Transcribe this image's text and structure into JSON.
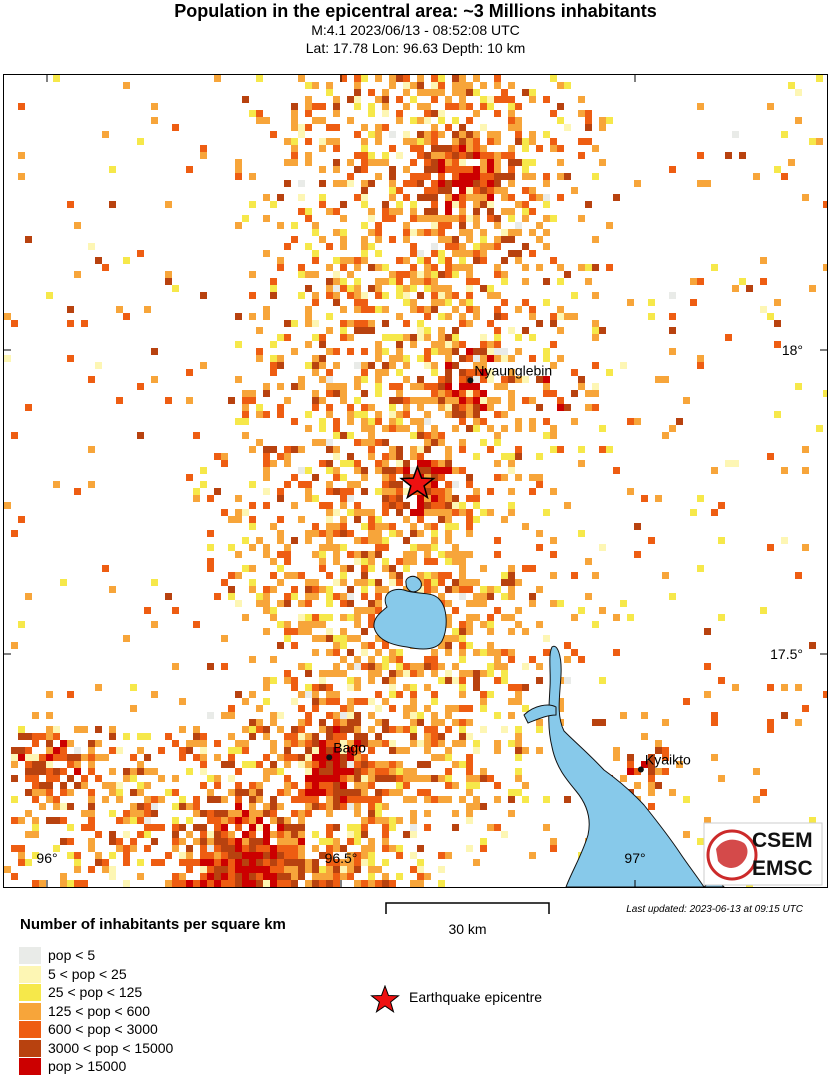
{
  "header": {
    "title": "Population in the epicentral area: ~3 Millions inhabitants",
    "line2": "M:4.1 2023/06/13 - 08:52:08 UTC",
    "line3": "Lat: 17.78 Lon: 96.63 Depth: 10 km"
  },
  "map": {
    "lon_ticks": [
      {
        "label": "96°",
        "value": 96.0
      },
      {
        "label": "96.5°",
        "value": 96.5
      },
      {
        "label": "97°",
        "value": 97.0
      }
    ],
    "lat_ticks": [
      {
        "label": "18°",
        "value": 18.0
      },
      {
        "label": "17.5°",
        "value": 17.5
      }
    ],
    "cities": [
      {
        "name": "Nyaunglebin",
        "lon": 96.72,
        "lat": 17.95
      },
      {
        "name": "Bago",
        "lon": 96.48,
        "lat": 17.33
      },
      {
        "name": "Kyaikto",
        "lon": 97.01,
        "lat": 17.31
      }
    ],
    "epicentre": {
      "lon": 96.63,
      "lat": 17.78
    },
    "water_color": "#87c9ea",
    "logo": {
      "line1": "CSEM",
      "line2": "EMSC"
    }
  },
  "scale": {
    "label": "30 km"
  },
  "last_updated": "Last updated: 2023-06-13 at 09:15 UTC",
  "legend": {
    "title": "Number of inhabitants per square km",
    "items": [
      {
        "label": "pop < 5",
        "color": "#e9ebe8"
      },
      {
        "label": "5 < pop < 25",
        "color": "#fdf6b4"
      },
      {
        "label": "25 < pop < 125",
        "color": "#f6e84a"
      },
      {
        "label": "125 < pop < 600",
        "color": "#f7a53a"
      },
      {
        "label": "600 < pop < 3000",
        "color": "#ee5d12"
      },
      {
        "label": "3000 < pop < 15000",
        "color": "#b8420f"
      },
      {
        "label": "pop > 15000",
        "color": "#cc0000"
      }
    ],
    "epicentre_label": "Earthquake epicentre",
    "epicentre_color": "#ee1111"
  }
}
